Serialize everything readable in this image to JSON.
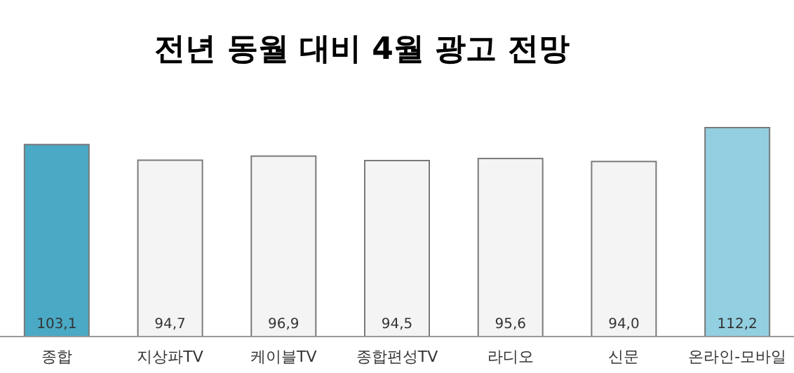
{
  "chart_data": {
    "type": "bar",
    "title": "전년 동월 대비 4월 광고 전망",
    "categories": [
      "종합",
      "지상파TV",
      "케이블TV",
      "종합편성TV",
      "라디오",
      "신문",
      "온라인-모바일"
    ],
    "values": [
      103.1,
      94.7,
      96.9,
      94.5,
      95.6,
      94.0,
      112.2
    ],
    "value_labels": [
      "103,1",
      "94,7",
      "96,9",
      "94,5",
      "95,6",
      "94,0",
      "112,2"
    ],
    "colors": [
      "#4aa9c5",
      "#f4f4f4",
      "#f4f4f4",
      "#f4f4f4",
      "#f4f4f4",
      "#f4f4f4",
      "#92cfe0"
    ]
  }
}
